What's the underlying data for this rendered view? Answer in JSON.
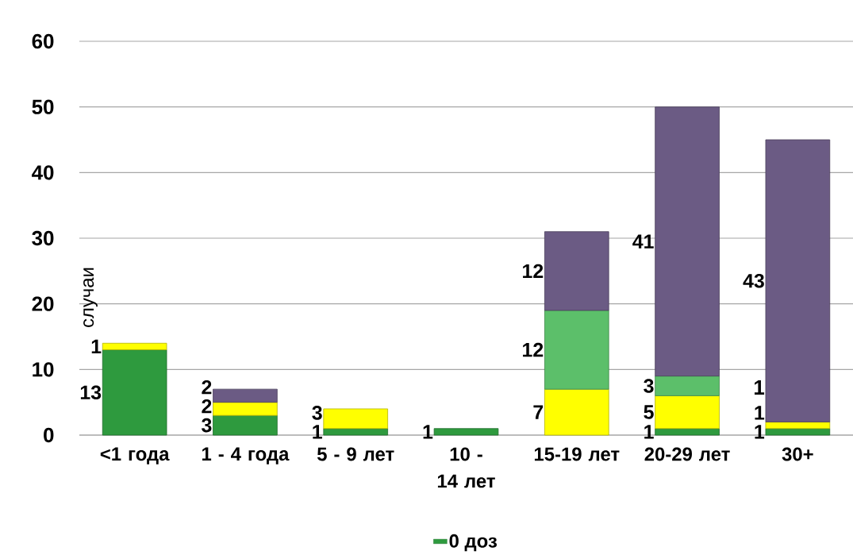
{
  "chart_data": {
    "type": "bar",
    "stacked": true,
    "ylabel": "случаи",
    "categories": [
      "<1 года",
      "1 - 4 года",
      "5 - 9 лет",
      "10 - 14 лет",
      "15-19 лет",
      "20-29 лет",
      "30+"
    ],
    "series": [
      {
        "name": "0 доз",
        "color": "#2e9a3e",
        "values": [
          13,
          3,
          1,
          1,
          null,
          1,
          1
        ]
      },
      {
        "color": "#ffff00",
        "values": [
          1,
          2,
          3,
          null,
          7,
          5,
          1
        ]
      },
      {
        "color": "#5cbf6a",
        "values": [
          null,
          null,
          null,
          null,
          12,
          3,
          null
        ]
      },
      {
        "color": "#6b5b84",
        "values": [
          null,
          2,
          null,
          null,
          12,
          41,
          43
        ]
      }
    ],
    "data_labels": true,
    "annotations": [
      "1"
    ],
    "ylim": [
      0,
      60
    ],
    "yticks": [
      0,
      10,
      20,
      30,
      40,
      50,
      60
    ],
    "grid": "y",
    "legend": "bottom"
  }
}
